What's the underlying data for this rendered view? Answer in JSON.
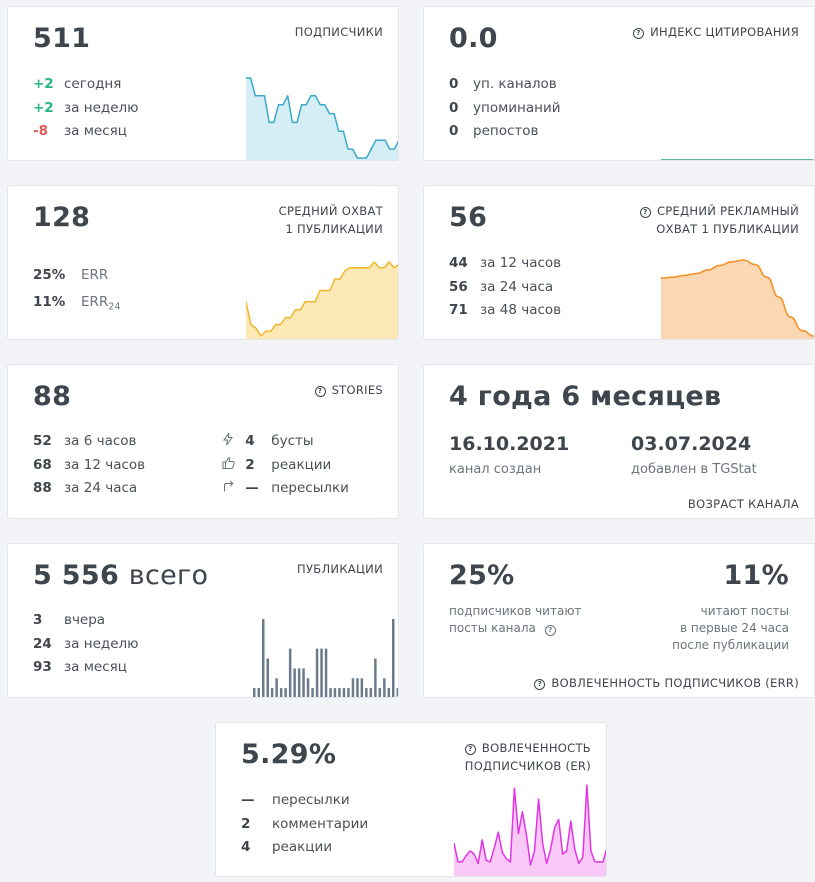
{
  "subscribers": {
    "value": "511",
    "label": "ПОДПИСЧИКИ",
    "rows": [
      {
        "n": "+2",
        "t": "сегодня"
      },
      {
        "n": "+2",
        "t": "за неделю"
      },
      {
        "n": "-8",
        "t": "за месяц"
      }
    ]
  },
  "citation": {
    "value": "0.0",
    "label": "ИНДЕКС ЦИТИРОВАНИЯ",
    "rows": [
      {
        "n": "0",
        "t": "уп. каналов"
      },
      {
        "n": "0",
        "t": "упоминаний"
      },
      {
        "n": "0",
        "t": "репостов"
      }
    ]
  },
  "reach": {
    "value": "128",
    "label_line1": "СРЕДНИЙ ОХВАТ",
    "label_line2": "1 ПУБЛИКАЦИИ",
    "rows": [
      {
        "n": "25%",
        "t": "ERR"
      },
      {
        "n": "11%",
        "t": "ERR",
        "sub": "24"
      }
    ]
  },
  "ad_reach": {
    "value": "56",
    "label_line1": "СРЕДНИЙ РЕКЛАМНЫЙ",
    "label_line2": "ОХВАТ 1 ПУБЛИКАЦИИ",
    "rows": [
      {
        "n": "44",
        "t": "за 12 часов"
      },
      {
        "n": "56",
        "t": "за 24 часа"
      },
      {
        "n": "71",
        "t": "за 48 часов"
      }
    ]
  },
  "stories": {
    "value": "88",
    "label": "STORIES",
    "rows": [
      {
        "n": "52",
        "t": "за 6 часов"
      },
      {
        "n": "68",
        "t": "за 12 часов"
      },
      {
        "n": "88",
        "t": "за 24 часа"
      }
    ],
    "right_rows": [
      {
        "icon": "lightning-icon",
        "n": "4",
        "t": "бусты"
      },
      {
        "icon": "thumbs-up-icon",
        "n": "2",
        "t": "реакции"
      },
      {
        "icon": "share-arrow-icon",
        "n": "—",
        "t": "пересылки"
      }
    ]
  },
  "age": {
    "value": "4 года 6 месяцев",
    "created_date": "16.10.2021",
    "created_label": "канал создан",
    "added_date": "03.07.2024",
    "added_label": "добавлен в TGStat",
    "label": "ВОЗРАСТ КАНАЛА"
  },
  "posts": {
    "value": "5 556",
    "unit": "всего",
    "label": "ПУБЛИКАЦИИ",
    "rows": [
      {
        "n": "3",
        "t": "вчера"
      },
      {
        "n": "24",
        "t": "за неделю"
      },
      {
        "n": "93",
        "t": "за месяц"
      }
    ]
  },
  "err": {
    "left_value": "25%",
    "left_text_1": "подписчиков читают",
    "left_text_2": "посты канала",
    "right_value": "11%",
    "right_text_1": "читают посты",
    "right_text_2": "в первые 24 часа",
    "right_text_3": "после публикации",
    "label": "ВОВЛЕЧЕННОСТЬ ПОДПИСЧИКОВ (ERR)"
  },
  "er": {
    "value": "5.29%",
    "label_line1": "ВОВЛЕЧЕННОСТЬ",
    "label_line2": "ПОДПИСЧИКОВ (ER)",
    "rows": [
      {
        "n": "—",
        "t": "пересылки"
      },
      {
        "n": "2",
        "t": "комментарии"
      },
      {
        "n": "4",
        "t": "реакции"
      }
    ]
  },
  "sparklines": {
    "subscribers": {
      "values": [
        9,
        9,
        7,
        7,
        7,
        4,
        4,
        6,
        6,
        7,
        4,
        4,
        6,
        6,
        7,
        7,
        6,
        6,
        5,
        5,
        3,
        3,
        1,
        1,
        0,
        0,
        0,
        1,
        2,
        2,
        2,
        1,
        1,
        2
      ],
      "color": "#3aa9c9",
      "fill": "#d5eef6"
    },
    "citation": {
      "values": [
        0,
        0,
        0,
        0,
        0
      ],
      "color": "#28a769",
      "fill": "#ffffff"
    },
    "reach": {
      "values": [
        3,
        1,
        0.7,
        0,
        0.4,
        0.4,
        1,
        1,
        1.6,
        1.6,
        2.3,
        2.3,
        3,
        3,
        3,
        4,
        4,
        4,
        5,
        5,
        5.7,
        6,
        6,
        6,
        6,
        6,
        6.5,
        6,
        6,
        6.5,
        6,
        6.3
      ],
      "color": "#f1b62d",
      "fill": "#fde9b5"
    },
    "ad_reach": {
      "values": [
        6.4,
        6.5,
        6.7,
        6.9,
        7.3,
        7.8,
        8.2,
        8.4,
        7.9,
        6.5,
        4.3,
        2.1,
        0.6,
        0
      ],
      "color": "#f39228",
      "fill": "#fcd7b4"
    },
    "posts": {
      "values": [
        1,
        1,
        8,
        4,
        1,
        2,
        1,
        1,
        5,
        3,
        3,
        3,
        2,
        1,
        5,
        5,
        5,
        1,
        1,
        1,
        1,
        1,
        2,
        2,
        2,
        1,
        1,
        4,
        1,
        2,
        1,
        8,
        1
      ],
      "color": "#6b7b8d"
    },
    "er": {
      "values": [
        1.5,
        0.3,
        0.3,
        0.7,
        1.0,
        0.8,
        0.2,
        1.7,
        0.4,
        0.3,
        1.2,
        2.2,
        0.9,
        0.5,
        0.3,
        5.0,
        2.1,
        3.5,
        2.0,
        0.1,
        1.0,
        4.3,
        1.5,
        0.2,
        1.1,
        2.5,
        3.0,
        0.8,
        1.0,
        2.9,
        1.1,
        0.2,
        0.6,
        5.2,
        1.0,
        0.3,
        0.3,
        0.3,
        1.2
      ],
      "color": "#e433e4",
      "fill": "#f8c8f6"
    }
  }
}
